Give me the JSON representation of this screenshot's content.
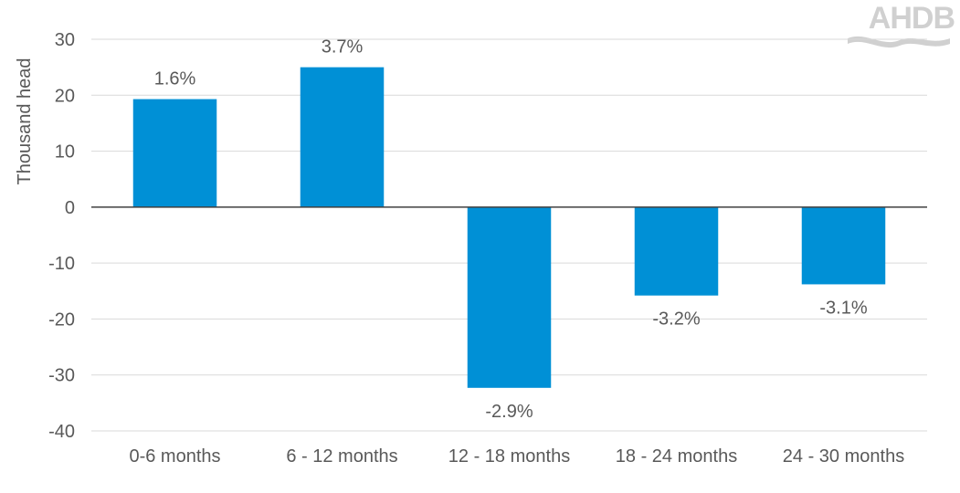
{
  "logo": {
    "text": "AHDB"
  },
  "chart_data": {
    "type": "bar",
    "ylabel": "Thousand head",
    "xlabel": "",
    "ylim": [
      -40,
      30
    ],
    "yticks": [
      30,
      20,
      10,
      0,
      -10,
      -20,
      -30,
      -40
    ],
    "ytick_labels": [
      "30",
      "20",
      "10",
      "0",
      "-10",
      "-20",
      "-30",
      "-40"
    ],
    "grid": true,
    "legend": "none",
    "categories": [
      "0-6 months",
      "6 - 12 months",
      "12 - 18 months",
      "18 - 24 months",
      "24 - 30 months"
    ],
    "values": [
      19.3,
      25.0,
      -32.3,
      -15.8,
      -13.8
    ],
    "data_labels": [
      "1.6%",
      "3.7%",
      "-2.9%",
      "-3.2%",
      "-3.1%"
    ],
    "colors": {
      "bar": "#0090d6",
      "grid": "#d9d9d9",
      "zero_line": "#404040"
    }
  }
}
